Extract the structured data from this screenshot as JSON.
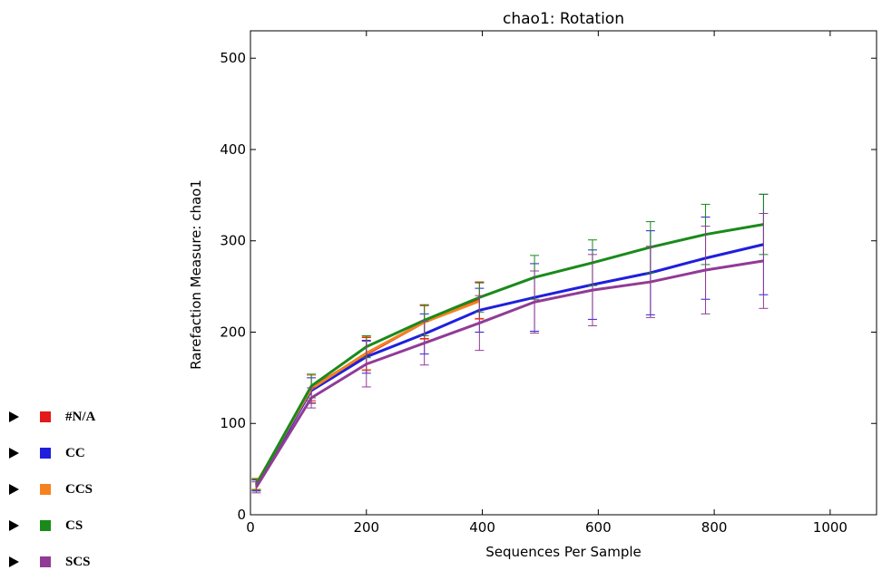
{
  "chart_data": {
    "type": "line",
    "title": "chao1: Rotation",
    "xlabel": "Sequences Per Sample",
    "ylabel": "Rarefaction Measure: chao1",
    "xlim": [
      0,
      1080
    ],
    "ylim": [
      0,
      530
    ],
    "xticks": [
      0,
      200,
      400,
      600,
      800,
      1000
    ],
    "yticks": [
      0,
      100,
      200,
      300,
      400,
      500
    ],
    "series": [
      {
        "name": "#N/A",
        "color": "#e31a1c",
        "x": [
          10,
          105,
          200,
          300,
          395
        ],
        "y": [
          33,
          139,
          176,
          211,
          235
        ],
        "err": [
          6,
          14,
          18,
          18,
          20
        ]
      },
      {
        "name": "CC",
        "color": "#1f1fdd",
        "x": [
          10,
          105,
          200,
          300,
          395,
          490,
          590,
          690,
          785,
          885
        ],
        "y": [
          32,
          136,
          173,
          198,
          224,
          238,
          252,
          265,
          281,
          296
        ],
        "err": [
          6,
          14,
          18,
          22,
          24,
          37,
          38,
          46,
          45,
          55
        ]
      },
      {
        "name": "CCS",
        "color": "#f58220",
        "x": [
          10,
          105,
          200,
          300,
          395
        ],
        "y": [
          34,
          138,
          177,
          211,
          234
        ],
        "err": [
          6,
          15,
          18,
          19,
          20
        ]
      },
      {
        "name": "CS",
        "color": "#1a8a1a",
        "x": [
          10,
          105,
          200,
          300,
          395,
          490,
          590,
          690,
          785,
          885
        ],
        "y": [
          33,
          141,
          184,
          213,
          238,
          260,
          276,
          293,
          307,
          318
        ],
        "err": [
          6,
          13,
          12,
          17,
          16,
          24,
          25,
          28,
          33,
          33
        ]
      },
      {
        "name": "SCS",
        "color": "#913b96",
        "x": [
          10,
          105,
          200,
          300,
          395,
          490,
          590,
          690,
          785,
          885
        ],
        "y": [
          30,
          128,
          165,
          188,
          210,
          233,
          246,
          255,
          268,
          278
        ],
        "err": [
          6,
          11,
          25,
          24,
          30,
          34,
          39,
          39,
          48,
          52
        ]
      }
    ]
  }
}
